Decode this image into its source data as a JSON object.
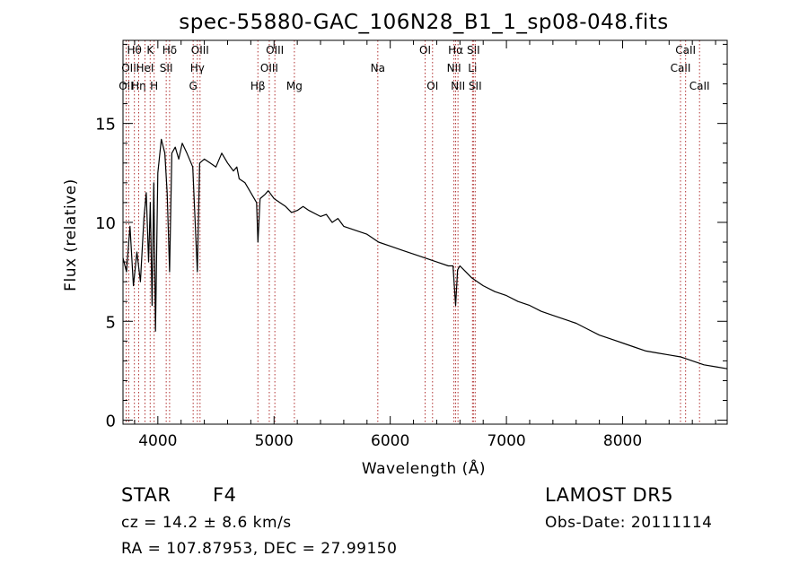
{
  "chart_data": {
    "type": "line",
    "title": "spec-55880-GAC_106N28_B1_1_sp08-048.fits",
    "xlabel": "Wavelength (Å)",
    "ylabel": "Flux (relative)",
    "xlim": [
      3700,
      8900
    ],
    "ylim": [
      -0.2,
      19.2
    ],
    "xticks": [
      4000,
      5000,
      6000,
      7000,
      8000
    ],
    "yticks": [
      0,
      5,
      10,
      15
    ],
    "grid": false,
    "legend": "none",
    "line_color": "#000000",
    "marker_color": "#b03030",
    "series": [
      {
        "x": [
          3700,
          3730,
          3760,
          3790,
          3820,
          3850,
          3880,
          3900,
          3920,
          3935,
          3950,
          3965,
          3980,
          4000,
          4030,
          4060,
          4080,
          4101,
          4120,
          4150,
          4180,
          4210,
          4250,
          4300,
          4340,
          4360,
          4400,
          4450,
          4500,
          4550,
          4600,
          4650,
          4680,
          4700,
          4750,
          4800,
          4850,
          4861,
          4880,
          4920,
          4950,
          5000,
          5050,
          5100,
          5150,
          5200,
          5250,
          5300,
          5400,
          5450,
          5500,
          5550,
          5600,
          5700,
          5800,
          5900,
          6000,
          6100,
          6200,
          6300,
          6400,
          6500,
          6540,
          6563,
          6580,
          6600,
          6650,
          6700,
          6800,
          6900,
          7000,
          7100,
          7200,
          7300,
          7400,
          7500,
          7600,
          7700,
          7800,
          7900,
          8000,
          8100,
          8200,
          8300,
          8400,
          8500,
          8600,
          8700,
          8800,
          8900
        ],
        "values": [
          8.2,
          7.5,
          9.8,
          6.8,
          8.5,
          7.0,
          10.2,
          11.5,
          8.0,
          11.0,
          5.8,
          12.0,
          4.5,
          12.5,
          14.2,
          13.5,
          11.5,
          7.5,
          13.5,
          13.8,
          13.2,
          14.0,
          13.5,
          12.8,
          7.5,
          13.0,
          13.2,
          13.0,
          12.8,
          13.5,
          13.0,
          12.6,
          12.8,
          12.2,
          12.0,
          11.5,
          11.0,
          9.0,
          11.2,
          11.4,
          11.6,
          11.2,
          11.0,
          10.8,
          10.5,
          10.6,
          10.8,
          10.6,
          10.3,
          10.4,
          10.0,
          10.2,
          9.8,
          9.6,
          9.4,
          9.0,
          8.8,
          8.6,
          8.4,
          8.2,
          8.0,
          7.8,
          7.8,
          5.8,
          7.6,
          7.8,
          7.5,
          7.2,
          6.8,
          6.5,
          6.3,
          6.0,
          5.8,
          5.5,
          5.3,
          5.1,
          4.9,
          4.6,
          4.3,
          4.1,
          3.9,
          3.7,
          3.5,
          3.4,
          3.3,
          3.2,
          3.0,
          2.8,
          2.7,
          2.6
        ]
      }
    ],
    "lines": [
      {
        "wl": 3727,
        "label": "OII",
        "row": 3
      },
      {
        "wl": 3750,
        "label": "OII",
        "row": 2
      },
      {
        "wl": 3798,
        "label": "Hθ",
        "row": 1
      },
      {
        "wl": 3835,
        "label": "Hη",
        "row": 3
      },
      {
        "wl": 3889,
        "label": "HeI",
        "row": 2
      },
      {
        "wl": 3934,
        "label": "K",
        "row": 1
      },
      {
        "wl": 3968,
        "label": "H",
        "row": 3
      },
      {
        "wl": 4072,
        "label": "SII",
        "row": 2
      },
      {
        "wl": 4101,
        "label": "Hδ",
        "row": 1
      },
      {
        "wl": 4304,
        "label": "G",
        "row": 3
      },
      {
        "wl": 4340,
        "label": "Hγ",
        "row": 2
      },
      {
        "wl": 4363,
        "label": "OIII",
        "row": 1
      },
      {
        "wl": 4861,
        "label": "Hβ",
        "row": 3
      },
      {
        "wl": 4959,
        "label": "OIII",
        "row": 2
      },
      {
        "wl": 5007,
        "label": "OIII",
        "row": 1
      },
      {
        "wl": 5175,
        "label": "Mg",
        "row": 3
      },
      {
        "wl": 5893,
        "label": "Na",
        "row": 2
      },
      {
        "wl": 6300,
        "label": "OI",
        "row": 1
      },
      {
        "wl": 6364,
        "label": "OI",
        "row": 3
      },
      {
        "wl": 6548,
        "label": "NII",
        "row": 2
      },
      {
        "wl": 6563,
        "label": "Hα",
        "row": 1
      },
      {
        "wl": 6583,
        "label": "NII",
        "row": 3
      },
      {
        "wl": 6708,
        "label": "Li",
        "row": 2
      },
      {
        "wl": 6716,
        "label": "SII",
        "row": 1
      },
      {
        "wl": 6731,
        "label": "SII",
        "row": 3
      },
      {
        "wl": 8498,
        "label": "CaII",
        "row": 2
      },
      {
        "wl": 8542,
        "label": "CaII",
        "row": 1
      },
      {
        "wl": 8662,
        "label": "CaII",
        "row": 3
      }
    ]
  },
  "info": {
    "object_class": "STAR",
    "subclass": "F4",
    "survey": "LAMOST DR5",
    "cz": "cz = 14.2 ± 8.6 km/s",
    "obs_date": "Obs-Date: 20111114",
    "coords": "RA = 107.87953, DEC =  27.99150"
  }
}
